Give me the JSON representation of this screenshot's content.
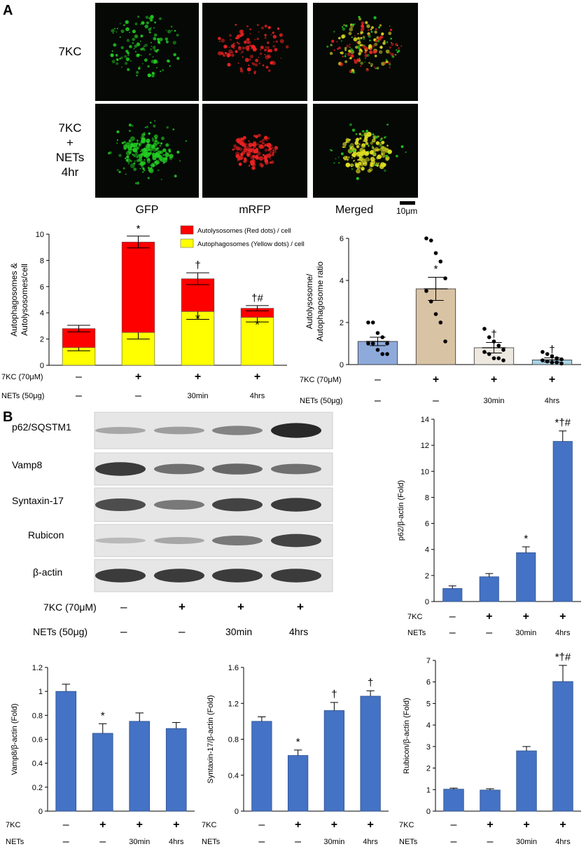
{
  "panel_a": {
    "letter": "A",
    "row_labels": [
      "7KC",
      "7KC\n+\nNETs\n4hr"
    ],
    "column_labels": [
      "GFP",
      "mRFP",
      "Merged"
    ],
    "scale_bar": "10μm",
    "colors": {
      "gfp": "#22cc22",
      "mrfp": "#ee2222",
      "merged": "#dddd22",
      "background": "#050805"
    }
  },
  "panel_b": {
    "letter": "B",
    "blot_labels": [
      "p62/SQSTM1",
      "Vamp8",
      "Syntaxin-17",
      "Rubicon",
      "β-actin"
    ],
    "row1_label": "7KC (70μM)",
    "row2_label": "NETs (50μg)",
    "row1_values": [
      "–",
      "+",
      "+",
      "+"
    ],
    "row2_values": [
      "–",
      "–",
      "30min",
      "4hrs"
    ]
  },
  "chart_data": [
    {
      "id": "stacked",
      "type": "bar",
      "stacked": true,
      "ylabel": "Autophagosomes &\nAutolysosomes/cell",
      "ylim": [
        0,
        10
      ],
      "yticks": [
        "0",
        "2",
        "4",
        "6",
        "8",
        "10"
      ],
      "categories": [
        "1",
        "2",
        "3",
        "4"
      ],
      "series": [
        {
          "name": "Autophagosomes (Yellow dots) / cell",
          "color": "#ffff00",
          "values": [
            1.35,
            2.5,
            4.1,
            3.65
          ],
          "errors": [
            0.25,
            0.5,
            0.6,
            0.35
          ]
        },
        {
          "name": "Autolysosomes (Red dots) / cell",
          "color": "#ff0000",
          "values": [
            1.45,
            6.9,
            2.5,
            0.7
          ],
          "errors": [
            0.25,
            0.45,
            0.45,
            0.2
          ]
        }
      ],
      "top_annotations": [
        "",
        "*",
        "†",
        "†#"
      ],
      "inner_annotations": [
        "",
        "",
        "*",
        "*"
      ],
      "row1_label": "7KC (70μM)",
      "row2_label": "NETs (50μg)",
      "row1": [
        "–",
        "+",
        "+",
        "+"
      ],
      "row2": [
        "–",
        "–",
        "30min",
        "4hrs"
      ],
      "legend": "top-right"
    },
    {
      "id": "ratio",
      "type": "bar",
      "ylabel": "Autolysosome/\nAutophagosome ratio",
      "ylim": [
        0,
        6
      ],
      "yticks": [
        "0",
        "2",
        "4",
        "6"
      ],
      "categories": [
        "1",
        "2",
        "3",
        "4"
      ],
      "values": [
        1.1,
        3.6,
        0.8,
        0.22
      ],
      "errors": [
        0.2,
        0.55,
        0.25,
        0.1
      ],
      "colors": [
        "#8eaadb",
        "#d9c3a5",
        "#ede8e0",
        "#a9d3e6"
      ],
      "points": [
        [
          2.0,
          2.0,
          1.5,
          1.3,
          1.0,
          1.0,
          1.0,
          0.7,
          0.5,
          0.5
        ],
        [
          6.0,
          5.9,
          5.3,
          4.9,
          4.1,
          3.5,
          3.0,
          2.4,
          2.0,
          1.1
        ],
        [
          1.7,
          1.3,
          1.1,
          0.9,
          0.7,
          0.6,
          0.5,
          0.3,
          0.3,
          0.2
        ],
        [
          0.6,
          0.5,
          0.4,
          0.3,
          0.25,
          0.2,
          0.15,
          0.1,
          0.1,
          0.05
        ]
      ],
      "annotations": [
        "",
        "*",
        "†",
        "†"
      ],
      "row1_label": "7KC (70μM)",
      "row2_label": "NETs (50μg)",
      "row1": [
        "–",
        "+",
        "+",
        "+"
      ],
      "row2": [
        "–",
        "–",
        "30min",
        "4hrs"
      ]
    },
    {
      "id": "p62",
      "type": "bar",
      "ylabel": "p62/β-actin (Fold)",
      "ylim": [
        0,
        14
      ],
      "yticks": [
        "0",
        "2",
        "4",
        "6",
        "8",
        "10",
        "12",
        "14"
      ],
      "categories": [
        "1",
        "2",
        "3",
        "4"
      ],
      "values": [
        1.0,
        1.9,
        3.75,
        12.3
      ],
      "errors": [
        0.2,
        0.25,
        0.45,
        0.8
      ],
      "annotations": [
        "",
        "",
        "*",
        "*†#"
      ],
      "row1_label": "7KC",
      "row2_label": "NETs",
      "row1": [
        "–",
        "+",
        "+",
        "+"
      ],
      "row2": [
        "–",
        "–",
        "30min",
        "4hrs"
      ]
    },
    {
      "id": "vamp8",
      "type": "bar",
      "ylabel": "Vamp8/β-actin (Fold)",
      "ylim": [
        0,
        1.2
      ],
      "yticks": [
        "0",
        "0.2",
        "0.4",
        "0.6",
        "0.8",
        "1",
        "1.2"
      ],
      "categories": [
        "1",
        "2",
        "3",
        "4"
      ],
      "values": [
        1.0,
        0.65,
        0.75,
        0.69
      ],
      "errors": [
        0.06,
        0.08,
        0.07,
        0.05
      ],
      "annotations": [
        "",
        "*",
        "",
        ""
      ],
      "row1_label": "7KC",
      "row2_label": "NETs",
      "row1": [
        "–",
        "+",
        "+",
        "+"
      ],
      "row2": [
        "–",
        "–",
        "30min",
        "4hrs"
      ]
    },
    {
      "id": "syntaxin",
      "type": "bar",
      "ylabel": "Syntaxin-17/β-actin (Fold)",
      "ylim": [
        0,
        1.6
      ],
      "yticks": [
        "0",
        "0.4",
        "0.8",
        "1.2",
        "1.6"
      ],
      "categories": [
        "1",
        "2",
        "3",
        "4"
      ],
      "values": [
        1.0,
        0.62,
        1.12,
        1.28
      ],
      "errors": [
        0.05,
        0.06,
        0.09,
        0.06
      ],
      "annotations": [
        "",
        "*",
        "†",
        "†"
      ],
      "row1_label": "7KC",
      "row2_label": "NETs",
      "row1": [
        "–",
        "+",
        "+",
        "+"
      ],
      "row2": [
        "–",
        "–",
        "30min",
        "4hrs"
      ]
    },
    {
      "id": "rubicon",
      "type": "bar",
      "ylabel": "Rubicon/β-actin (Fold)",
      "ylim": [
        0,
        7
      ],
      "yticks": [
        "0",
        "1",
        "2",
        "3",
        "4",
        "5",
        "6",
        "7"
      ],
      "categories": [
        "1",
        "2",
        "3",
        "4"
      ],
      "values": [
        1.02,
        0.98,
        2.8,
        6.02
      ],
      "errors": [
        0.05,
        0.06,
        0.2,
        0.75
      ],
      "annotations": [
        "",
        "",
        "",
        "*†#"
      ],
      "row1_label": "7KC",
      "row2_label": "NETs",
      "row1": [
        "–",
        "+",
        "+",
        "+"
      ],
      "row2": [
        "–",
        "–",
        "30min",
        "4hrs"
      ]
    }
  ]
}
